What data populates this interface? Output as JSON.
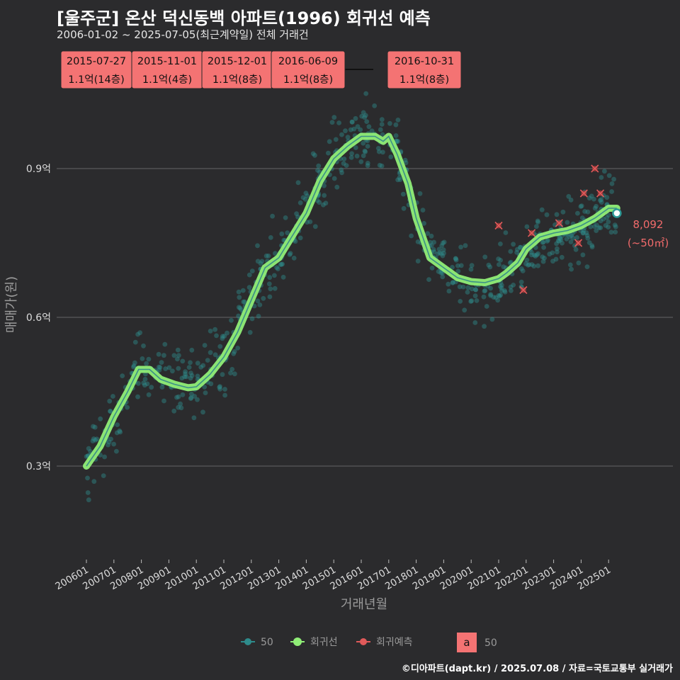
{
  "header": {
    "title": "[울주군] 온산 덕신동백 아파트(1996) 회귀선 예측",
    "subtitle": "2006-01-02 ~ 2025-07-05(최근계약일) 전체 거래건"
  },
  "footer": {
    "credit": "©디아파트(dapt.kr) / 2025.07.08 / 자료=국토교통부 실거래가"
  },
  "colors": {
    "background": "#2b2b2d",
    "grid": "#5a5a5c",
    "scatter": "#2e8b8b",
    "regression": "#90ee77",
    "prediction": "#e05a5a",
    "label_box": "#f47373",
    "end_label": "#f26b6b"
  },
  "chart_data": {
    "type": "scatter",
    "title": "[울주군] 온산 덕신동백 아파트(1996) 회귀선 예측",
    "xlabel": "거래년월",
    "ylabel": "매매가(원)",
    "x_range": [
      2006.0,
      2025.6
    ],
    "ylim": [
      0.1,
      1.1
    ],
    "grid": true,
    "x_ticks": [
      {
        "label": "200601",
        "x": 2006.0
      },
      {
        "label": "200701",
        "x": 2007.0
      },
      {
        "label": "200801",
        "x": 2008.0
      },
      {
        "label": "200901",
        "x": 2009.0
      },
      {
        "label": "201001",
        "x": 2010.0
      },
      {
        "label": "201101",
        "x": 2011.0
      },
      {
        "label": "201201",
        "x": 2012.0
      },
      {
        "label": "201301",
        "x": 2013.0
      },
      {
        "label": "201401",
        "x": 2014.0
      },
      {
        "label": "201501",
        "x": 2015.0
      },
      {
        "label": "201601",
        "x": 2016.0
      },
      {
        "label": "201701",
        "x": 2017.0
      },
      {
        "label": "201801",
        "x": 2018.0
      },
      {
        "label": "201901",
        "x": 2019.0
      },
      {
        "label": "202001",
        "x": 2020.0
      },
      {
        "label": "202101",
        "x": 2021.0
      },
      {
        "label": "202201",
        "x": 2022.0
      },
      {
        "label": "202301",
        "x": 2023.0
      },
      {
        "label": "202401",
        "x": 2024.0
      },
      {
        "label": "202501",
        "x": 2025.0
      }
    ],
    "y_ticks": [
      {
        "label": "0.3억",
        "value": 0.3
      },
      {
        "label": "0.6억",
        "value": 0.6
      },
      {
        "label": "0.9억",
        "value": 0.9
      }
    ],
    "regression_line": {
      "name": "회귀선",
      "x": [
        2006.0,
        2006.5,
        2007.0,
        2007.5,
        2007.9,
        2008.3,
        2008.7,
        2009.2,
        2009.7,
        2010.0,
        2010.5,
        2011.0,
        2011.5,
        2012.0,
        2012.5,
        2013.0,
        2013.5,
        2014.0,
        2014.5,
        2015.0,
        2015.5,
        2016.0,
        2016.5,
        2016.8,
        2017.0,
        2017.3,
        2017.7,
        2018.0,
        2018.5,
        2019.0,
        2019.5,
        2020.0,
        2020.5,
        2021.0,
        2021.3,
        2021.7,
        2022.0,
        2022.5,
        2023.0,
        2023.5,
        2024.0,
        2024.5,
        2025.0,
        2025.3
      ],
      "y": [
        0.3,
        0.34,
        0.4,
        0.45,
        0.495,
        0.495,
        0.475,
        0.465,
        0.458,
        0.46,
        0.485,
        0.52,
        0.57,
        0.635,
        0.7,
        0.72,
        0.765,
        0.81,
        0.875,
        0.92,
        0.945,
        0.965,
        0.965,
        0.955,
        0.965,
        0.93,
        0.87,
        0.8,
        0.72,
        0.7,
        0.68,
        0.672,
        0.67,
        0.678,
        0.69,
        0.71,
        0.738,
        0.762,
        0.77,
        0.775,
        0.785,
        0.8,
        0.82,
        0.82
      ]
    },
    "predictions": {
      "name": "회귀예측",
      "x": [
        2021.0,
        2021.9,
        2022.2,
        2023.2,
        2023.9,
        2024.1,
        2024.5,
        2024.7
      ],
      "y": [
        0.785,
        0.655,
        0.77,
        0.79,
        0.75,
        0.85,
        0.9,
        0.85
      ]
    },
    "last_point": {
      "x": 2025.3,
      "y": 0.81,
      "value": "8,092",
      "area": "(~50㎡)"
    },
    "annotations": [
      {
        "date": "2015-07-27",
        "price": "1.1억(14층)"
      },
      {
        "date": "2015-11-01",
        "price": "1.1억(4층)"
      },
      {
        "date": "2015-12-01",
        "price": "1.1억(8층)"
      },
      {
        "date": "2016-06-09",
        "price": "1.1억(8층)"
      },
      {
        "date": "2016-10-31",
        "price": "1.1억(8층)"
      }
    ],
    "legend": {
      "items": [
        {
          "label": "50",
          "type": "scatter"
        },
        {
          "label": "회귀선",
          "type": "regression"
        },
        {
          "label": "회귀예측",
          "type": "prediction"
        }
      ],
      "size_key": "a",
      "size_label": "50"
    },
    "scatter_anchors": {
      "x": [
        2006.0,
        2006.5,
        2007.0,
        2007.5,
        2007.9,
        2008.3,
        2008.7,
        2009.2,
        2009.7,
        2010.0,
        2010.5,
        2011.0,
        2011.5,
        2012.0,
        2012.5,
        2013.0,
        2013.5,
        2014.0,
        2014.5,
        2015.0,
        2015.5,
        2016.0,
        2016.5,
        2016.8,
        2017.0,
        2017.3,
        2017.7,
        2018.0,
        2018.5,
        2019.0,
        2019.5,
        2020.0,
        2020.5,
        2021.0,
        2021.3,
        2021.7,
        2022.0,
        2022.5,
        2023.0,
        2023.5,
        2024.0,
        2024.5,
        2025.0,
        2025.3
      ],
      "y": [
        0.3,
        0.34,
        0.4,
        0.45,
        0.495,
        0.495,
        0.475,
        0.465,
        0.458,
        0.46,
        0.485,
        0.52,
        0.57,
        0.635,
        0.7,
        0.72,
        0.765,
        0.81,
        0.875,
        0.92,
        0.945,
        0.965,
        0.965,
        0.955,
        0.965,
        0.93,
        0.87,
        0.8,
        0.72,
        0.7,
        0.68,
        0.672,
        0.67,
        0.678,
        0.69,
        0.71,
        0.738,
        0.762,
        0.77,
        0.775,
        0.785,
        0.8,
        0.82,
        0.82
      ]
    },
    "scatter_count": 700
  }
}
